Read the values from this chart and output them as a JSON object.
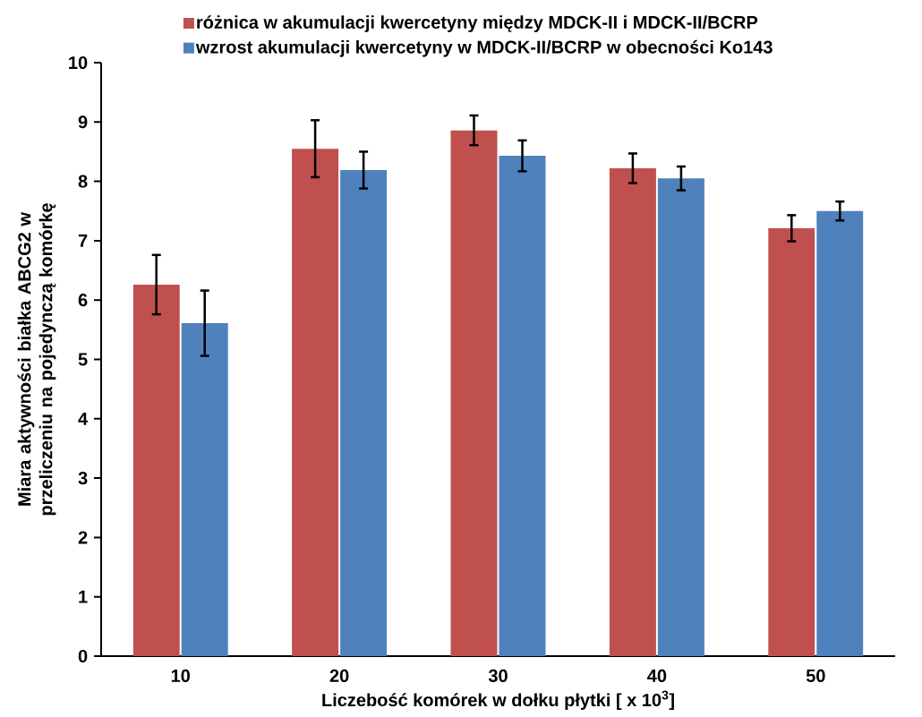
{
  "chart_data": {
    "type": "bar",
    "xlabel": "Liczebość komórek w dołku płytki [ x 10$^{3}$]",
    "ylabel": "Miara aktywności białka ABCG2 w przeliczeniu na pojedynczą komórkę",
    "categories": [
      "10",
      "20",
      "30",
      "40",
      "50"
    ],
    "series": [
      {
        "name": "różnica w akumulacji kwercetyny między MDCK-II i MDCK-II/BCRP",
        "color": "#c0504d",
        "values": [
          6.26,
          8.55,
          8.86,
          8.22,
          7.21
        ],
        "errors": [
          0.5,
          0.48,
          0.25,
          0.25,
          0.22
        ]
      },
      {
        "name": "wzrost akumulacji kwercetyny w MDCK-II/BCRP w obecności Ko143",
        "color": "#4f81bd",
        "values": [
          5.61,
          8.19,
          8.43,
          8.05,
          7.5
        ],
        "errors": [
          0.55,
          0.31,
          0.26,
          0.2,
          0.16
        ]
      }
    ],
    "ylim": [
      0,
      10
    ],
    "yticks": [
      0,
      1,
      2,
      3,
      4,
      5,
      6,
      7,
      8,
      9,
      10
    ],
    "grid": false,
    "legend": "top"
  }
}
